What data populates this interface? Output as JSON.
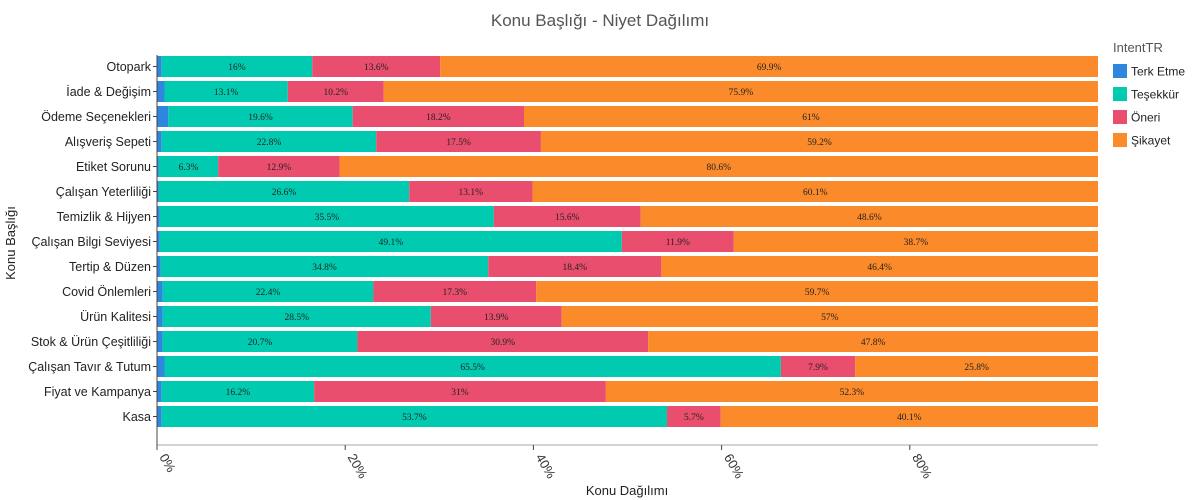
{
  "chart_data": {
    "type": "bar",
    "orientation": "horizontal",
    "stacked": true,
    "title": "Konu Başlığı - Niyet Dağılımı",
    "xlabel": "Konu Dağılımı",
    "ylabel": "Konu Başlığı",
    "xlim": [
      0,
      100
    ],
    "xticks": [
      0,
      20,
      40,
      60,
      80
    ],
    "xtick_labels": [
      "0%",
      "20%",
      "40%",
      "60%",
      "80%"
    ],
    "grid": false,
    "legend_title": "IntentTR",
    "legend_position": "top-right",
    "categories": [
      "Otopark",
      "İade & Değişim",
      "Ödeme Seçenekleri",
      "Alışveriş Sepeti",
      "Etiket Sorunu",
      "Çalışan Yeterliliği",
      "Temizlik & Hijyen",
      "Çalışan Bilgi Seviyesi",
      "Tertip & Düzen",
      "Covid Önlemleri",
      "Ürün Kalitesi",
      "Stok & Ürün Çeşitliliği",
      "Çalışan Tavır & Tutum",
      "Fiyat ve Kampanya",
      "Kasa"
    ],
    "series": [
      {
        "name": "Terk Etme",
        "color": "#2e86de",
        "values": [
          0.5,
          0.8,
          1.2,
          0.5,
          0.2,
          0.2,
          0.3,
          0.3,
          0.4,
          0.6,
          0.6,
          0.6,
          0.8,
          0.5,
          0.5
        ],
        "labels": [
          "",
          "",
          "",
          "",
          "",
          "",
          "",
          "",
          "",
          "",
          "",
          "",
          "",
          "",
          ""
        ]
      },
      {
        "name": "Teşekkür",
        "color": "#00cbb0",
        "values": [
          16,
          13.1,
          19.6,
          22.8,
          6.3,
          26.6,
          35.5,
          49.1,
          34.8,
          22.4,
          28.5,
          20.7,
          65.5,
          16.2,
          53.7
        ],
        "labels": [
          "16%",
          "13.1%",
          "19.6%",
          "22.8%",
          "6.3%",
          "26.6%",
          "35.5%",
          "49.1%",
          "34.8%",
          "22.4%",
          "28.5%",
          "20.7%",
          "65.5%",
          "16.2%",
          "53.7%"
        ]
      },
      {
        "name": "Öneri",
        "color": "#ea4e6e",
        "values": [
          13.6,
          10.2,
          18.2,
          17.5,
          12.9,
          13.1,
          15.6,
          11.9,
          18.4,
          17.3,
          13.9,
          30.9,
          7.9,
          31,
          5.7
        ],
        "labels": [
          "13.6%",
          "10.2%",
          "18.2%",
          "17.5%",
          "12.9%",
          "13.1%",
          "15.6%",
          "11.9%",
          "18.4%",
          "17.3%",
          "13.9%",
          "30.9%",
          "7.9%",
          "31%",
          "5.7%"
        ]
      },
      {
        "name": "Şikayet",
        "color": "#fa8a2a",
        "values": [
          69.9,
          75.9,
          61,
          59.2,
          80.6,
          60.1,
          48.6,
          38.7,
          46.4,
          59.7,
          57,
          47.8,
          25.8,
          52.3,
          40.1
        ],
        "labels": [
          "69.9%",
          "75.9%",
          "61%",
          "59.2%",
          "80.6%",
          "60.1%",
          "48.6%",
          "38.7%",
          "46.4%",
          "59.7%",
          "57%",
          "47.8%",
          "25.8%",
          "52.3%",
          "40.1%"
        ]
      }
    ]
  }
}
